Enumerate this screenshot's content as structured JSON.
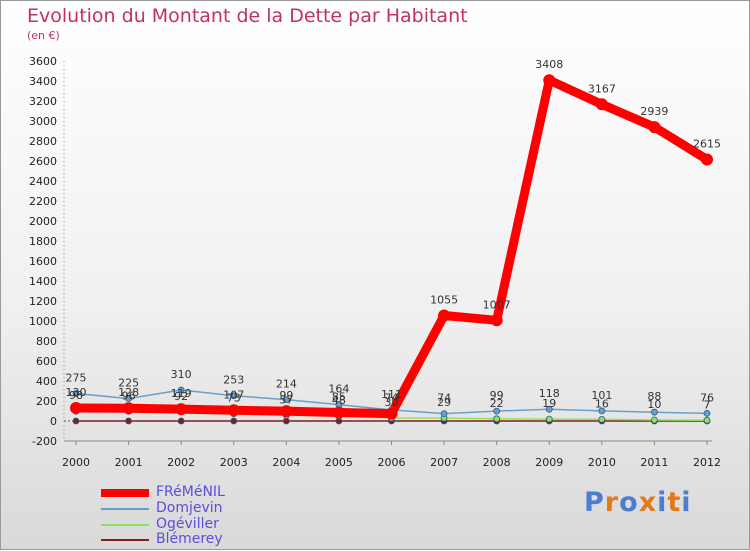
{
  "chart_data": {
    "type": "line",
    "title": "Evolution du Montant de la Dette par Habitant",
    "subtitle": "(en €)",
    "x": [
      "2000",
      "2001",
      "2002",
      "2003",
      "2004",
      "2005",
      "2006",
      "2007",
      "2008",
      "2009",
      "2010",
      "2011",
      "2012"
    ],
    "ylim": [
      -200,
      3600
    ],
    "yticks": [
      -200,
      0,
      200,
      400,
      600,
      800,
      1000,
      1200,
      1400,
      1600,
      1800,
      2000,
      2200,
      2400,
      2600,
      2800,
      3000,
      3200,
      3400,
      3600
    ],
    "grid": false,
    "series": [
      {
        "name": "FRéMéNIL",
        "color": "#ff0000",
        "values": [
          130,
          128,
          119,
          107,
          99,
          85,
          74,
          1055,
          1007,
          3408,
          3167,
          2939,
          2615
        ]
      },
      {
        "name": "Domjevin",
        "color": "#6a9fcb",
        "values": [
          275,
          225,
          310,
          253,
          214,
          164,
          111,
          74,
          99,
          118,
          101,
          88,
          76
        ]
      },
      {
        "name": "Ogéviller",
        "color": "#90e060",
        "values": [
          98,
          96,
          92,
          73,
          57,
          48,
          30,
          29,
          22,
          19,
          16,
          10,
          7
        ]
      },
      {
        "name": "Blémerey",
        "color": "#7b2020",
        "values": [
          0,
          0,
          0,
          0,
          0,
          0,
          0,
          0,
          0,
          0,
          0,
          0,
          0
        ]
      }
    ],
    "data_labels": [
      {
        "series": 0,
        "labels": [
          "130",
          "128",
          "119",
          "107",
          "99",
          "85",
          "74",
          "1055",
          "1007",
          "3408",
          "3167",
          "2939",
          "2615"
        ]
      },
      {
        "series": 1,
        "labels": [
          "275",
          "225",
          "310",
          "253",
          "214",
          "164",
          "111",
          "74",
          "99",
          "118",
          "101",
          "88",
          "76"
        ]
      },
      {
        "series": 2,
        "labels": [
          "98",
          "96",
          "92",
          "73",
          "57",
          "48",
          "30",
          "29",
          "22",
          "19",
          "16",
          "10",
          "7"
        ]
      }
    ],
    "legend_position": "bottom-left"
  },
  "logo": {
    "letters": [
      "P",
      "r",
      "o",
      "x",
      "i",
      "t",
      "i"
    ],
    "colors": [
      "#4a7fd0",
      "#e07a1a",
      "#4a7fd0",
      "#e07a1a",
      "#4a7fd0",
      "#e07a1a",
      "#4a7fd0"
    ]
  }
}
